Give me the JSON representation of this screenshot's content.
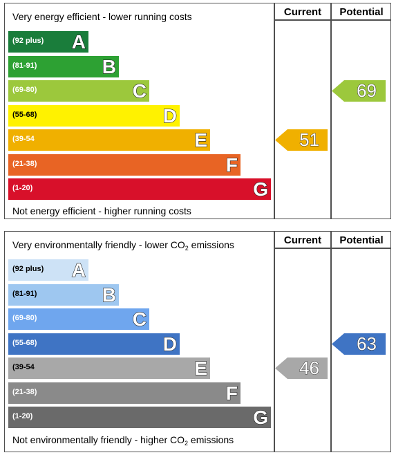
{
  "chart_data": [
    {
      "type": "bar",
      "columns": {
        "current": "Current",
        "potential": "Potential"
      },
      "top_caption": "Very energy efficient - lower running costs",
      "bottom_caption": "Not energy efficient - higher running costs",
      "bands": [
        {
          "range": "(92 plus)",
          "letter": "A",
          "color": "#1a7d3b"
        },
        {
          "range": "(81-91)",
          "letter": "B",
          "color": "#2da133"
        },
        {
          "range": "(69-80)",
          "letter": "C",
          "color": "#9cc83c"
        },
        {
          "range": "(55-68)",
          "letter": "D",
          "color": "#fff200"
        },
        {
          "range": "(39-54",
          "letter": "E",
          "color": "#f0b000"
        },
        {
          "range": "(21-38)",
          "letter": "F",
          "color": "#e86424"
        },
        {
          "range": "(1-20)",
          "letter": "G",
          "color": "#d8102a"
        }
      ],
      "current": {
        "value": 51,
        "band": "E",
        "color": "#f0b000"
      },
      "potential": {
        "value": 69,
        "band": "C",
        "color": "#9cc83c"
      }
    },
    {
      "type": "bar",
      "columns": {
        "current": "Current",
        "potential": "Potential"
      },
      "top_caption": "Very environmentally friendly - lower CO",
      "top_caption_sub": "2",
      "top_caption_end": " emissions",
      "bottom_caption": "Not environmentally friendly - higher CO",
      "bottom_caption_sub": "2",
      "bottom_caption_end": " emissions",
      "bands": [
        {
          "range": "(92 plus)",
          "letter": "A",
          "color": "#cde2f6",
          "text_color": "#000"
        },
        {
          "range": "(81-91)",
          "letter": "B",
          "color": "#9ec7f0",
          "text_color": "#000"
        },
        {
          "range": "(69-80)",
          "letter": "C",
          "color": "#6fa6ee",
          "text_color": "#fff"
        },
        {
          "range": "(55-68)",
          "letter": "D",
          "color": "#3f74c4",
          "text_color": "#fff"
        },
        {
          "range": "(39-54",
          "letter": "E",
          "color": "#a8a8a8",
          "text_color": "#000"
        },
        {
          "range": "(21-38)",
          "letter": "F",
          "color": "#8a8a8a",
          "text_color": "#fff"
        },
        {
          "range": "(1-20)",
          "letter": "G",
          "color": "#6a6a6a",
          "text_color": "#fff"
        }
      ],
      "current": {
        "value": 46,
        "band": "E",
        "color": "#a8a8a8"
      },
      "potential": {
        "value": 63,
        "band": "D",
        "color": "#3f74c4"
      }
    }
  ]
}
